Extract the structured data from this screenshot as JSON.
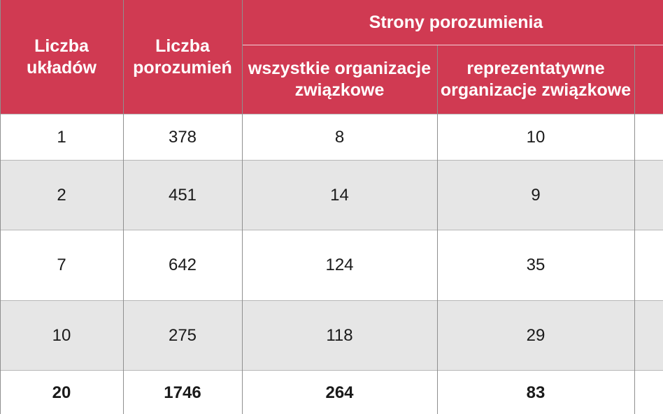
{
  "table": {
    "headers": {
      "col_units": "Liczba układów",
      "col_agreements": "Liczba porozumień",
      "group_parties": "Strony porozumienia",
      "sub_all_unions": "wszystkie organizacje związkowe",
      "sub_representative": "reprezentatywne organizacje związkowe"
    },
    "rows": [
      {
        "units": "1",
        "agreements": "378",
        "all_unions": "8",
        "representative": "10",
        "shade": "white"
      },
      {
        "units": "2",
        "agreements": "451",
        "all_unions": "14",
        "representative": "9",
        "shade": "grey"
      },
      {
        "units": "7",
        "agreements": "642",
        "all_unions": "124",
        "representative": "35",
        "shade": "white"
      },
      {
        "units": "10",
        "agreements": "275",
        "all_unions": "118",
        "representative": "29",
        "shade": "grey"
      }
    ],
    "total": {
      "units": "20",
      "agreements": "1746",
      "all_unions": "264",
      "representative": "83"
    }
  },
  "colors": {
    "header_bg": "#d03a52",
    "header_text": "#ffffff",
    "row_grey": "#e6e6e6",
    "row_white": "#ffffff"
  }
}
